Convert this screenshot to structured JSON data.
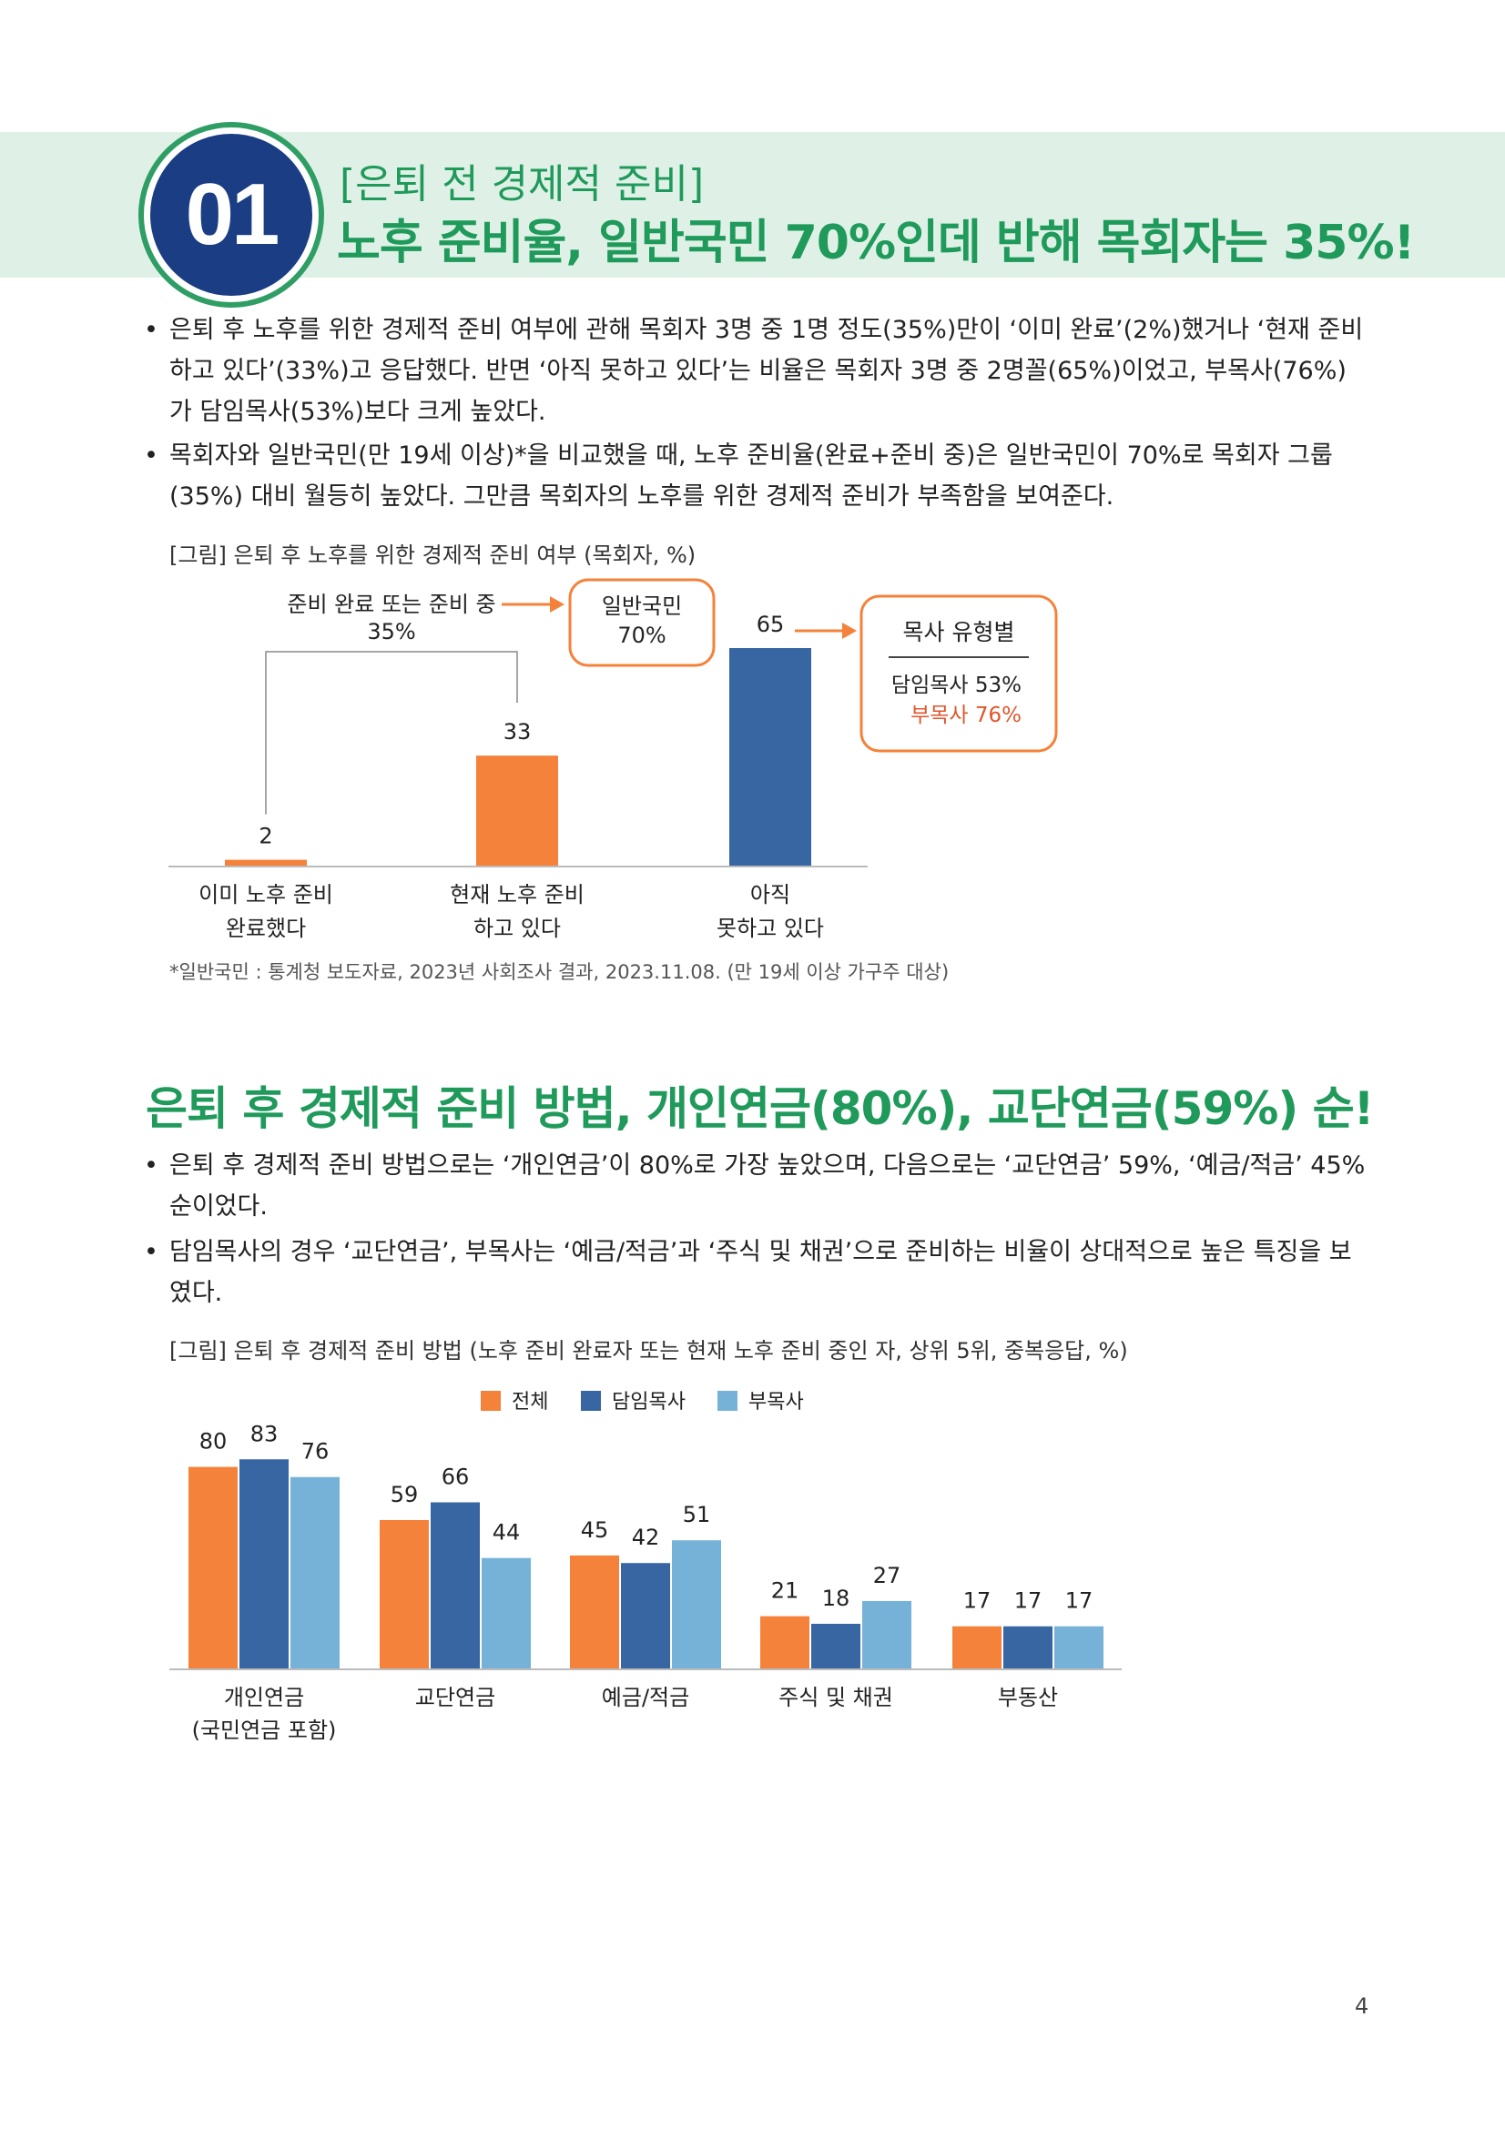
{
  "header": {
    "number": "01",
    "subtitle": "[은퇴 전 경제적 준비]",
    "title": "노후 준비율, 일반국민 70%인데 반해 목회자는 35%!"
  },
  "section1": {
    "bullets": [
      "은퇴 후 노후를 위한 경제적 준비 여부에 관해 목회자 3명 중 1명 정도(35%)만이 ‘이미 완료’(2%)했거나 ‘현재 준비하고 있다’(33%)고 응답했다. 반면 ‘아직 못하고 있다’는 비율은 목회자 3명 중 2명꼴(65%)이었고, 부목사(76%)가 담임목사(53%)보다 크게 높았다.",
      "목회자와 일반국민(만 19세 이상)*을 비교했을 때, 노후 준비율(완료+준비 중)은 일반국민이 70%로 목회자 그룹(35%) 대비 월등히 높았다. 그만큼 목회자의 노후를 위한 경제적 준비가 부족함을 보여준다."
    ],
    "caption": "[그림] 은퇴 후 노후를 위한 경제적 준비 여부 (목회자, %)",
    "note": "*일반국민 : 통계청 보도자료, 2023년 사회조사 결과, 2023.11.08. (만 19세 이상 가구주 대상)"
  },
  "section2": {
    "heading": "은퇴 후 경제적 준비 방법, 개인연금(80%), 교단연금(59%) 순!",
    "bullets": [
      "은퇴 후 경제적 준비 방법으로는 ‘개인연금’이 80%로 가장 높았으며, 다음으로는 ‘교단연금’ 59%, ‘예금/적금’ 45% 순이었다.",
      "담임목사의 경우 ‘교단연금’, 부목사는 ‘예금/적금’과 ‘주식 및 채권’으로 준비하는 비율이 상대적으로 높은 특징을 보였다."
    ],
    "caption": "[그림] 은퇴 후 경제적 준비 방법 (노후 준비 완료자 또는 현재 노후 준비 중인 자, 상위 5위, 중복응답, %)"
  },
  "page_number": "4",
  "colors": {
    "green": "#1f9a5b",
    "navy": "#1a3d84",
    "orange": "#f5823a",
    "blue": "#3766a2",
    "lightblue": "#76b2d8",
    "band": "#dff1e6"
  },
  "chart_data": [
    {
      "type": "bar",
      "categories": [
        [
          "이미 노후 준비",
          "완료했다"
        ],
        [
          "현재 노후 준비",
          "하고 있다"
        ],
        [
          "아직",
          "못하고 있다"
        ]
      ],
      "values": [
        2,
        33,
        65
      ],
      "bar_colors": [
        "#f5823a",
        "#f5823a",
        "#3766a2"
      ],
      "ylim": [
        0,
        70
      ],
      "annotations": {
        "bracket_label": "준비 완료 또는 준비 중",
        "bracket_value": "35%",
        "general_label": "일반국민",
        "general_value": "70%",
        "type_title": "목사 유형별",
        "type_rows": [
          {
            "label": "담임목사",
            "value": "53%"
          },
          {
            "label": "부목사",
            "value": "76%"
          }
        ]
      }
    },
    {
      "type": "bar",
      "categories": [
        [
          "개인연금",
          "(국민연금 포함)"
        ],
        [
          "교단연금"
        ],
        [
          "예금/적금"
        ],
        [
          "주식 및 채권"
        ],
        [
          "부동산"
        ]
      ],
      "series": [
        {
          "name": "전체",
          "values": [
            80,
            59,
            45,
            21,
            17
          ],
          "color": "#f5823a"
        },
        {
          "name": "담임목사",
          "values": [
            83,
            66,
            42,
            18,
            17
          ],
          "color": "#3766a2"
        },
        {
          "name": "부목사",
          "values": [
            76,
            44,
            51,
            27,
            17
          ],
          "color": "#76b2d8"
        }
      ],
      "ylim": [
        0,
        90
      ],
      "legend": "top-center"
    }
  ]
}
